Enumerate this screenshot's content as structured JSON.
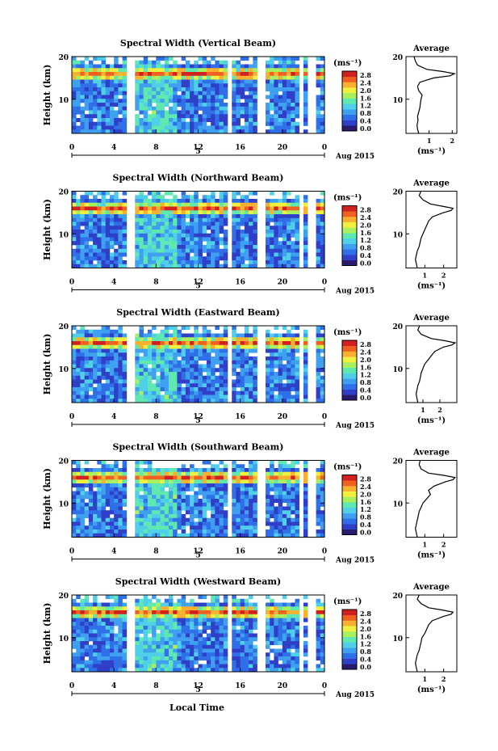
{
  "figure": {
    "ylabel": "Height (km)",
    "xlabel": "Local Time",
    "date_label": "Aug 2015",
    "day_label": "5",
    "unit_label": "(ms⁻¹)",
    "average_title": "Average",
    "average_xlabel": "(ms⁻¹)"
  },
  "chart_data": [
    {
      "type": "heatmap",
      "title": "Spectral Width (Vertical Beam)",
      "x_ticks": [
        "0",
        "4",
        "8",
        "12",
        "16",
        "20",
        "0"
      ],
      "y_ticks": [
        "20",
        "10"
      ],
      "ylim": [
        2,
        20
      ],
      "xlim": [
        0,
        24
      ],
      "colorbar_ticks": [
        "2.8",
        "2.4",
        "2.0",
        "1.6",
        "1.2",
        "0.8",
        "0.4",
        "0.0"
      ],
      "data_gaps_hours": [
        [
          5.4,
          6.0
        ],
        [
          14.8,
          15.2
        ],
        [
          17.8,
          18.4
        ],
        [
          21.6,
          22.0
        ],
        [
          22.6,
          23.0
        ]
      ],
      "tropopause_band_km": 16,
      "average_profile": {
        "xticks": [
          "1",
          "2"
        ],
        "xlim": [
          0,
          2.2
        ],
        "height_km": [
          2,
          3,
          4,
          5,
          6,
          7,
          8,
          9,
          10,
          11,
          12,
          13,
          14,
          15,
          15.5,
          16,
          16.5,
          17,
          18,
          19,
          20
        ],
        "width": [
          0.55,
          0.5,
          0.48,
          0.52,
          0.5,
          0.55,
          0.6,
          0.62,
          0.65,
          0.7,
          0.55,
          0.5,
          0.6,
          1.2,
          1.9,
          2.1,
          1.6,
          0.9,
          0.5,
          0.4,
          0.35
        ]
      }
    },
    {
      "type": "heatmap",
      "title": "Spectral Width (Northward Beam)",
      "x_ticks": [
        "0",
        "4",
        "8",
        "12",
        "16",
        "20",
        "0"
      ],
      "y_ticks": [
        "20",
        "10"
      ],
      "ylim": [
        2,
        20
      ],
      "xlim": [
        0,
        24
      ],
      "colorbar_ticks": [
        "2.8",
        "2.4",
        "2.0",
        "1.6",
        "1.2",
        "0.8",
        "0.4",
        "0.0"
      ],
      "data_gaps_hours": [
        [
          5.4,
          6.0
        ],
        [
          14.8,
          15.2
        ],
        [
          17.8,
          18.4
        ],
        [
          21.6,
          22.0
        ],
        [
          22.6,
          23.0
        ]
      ],
      "tropopause_band_km": 16,
      "average_profile": {
        "xticks": [
          "1",
          "2"
        ],
        "xlim": [
          0,
          2.7
        ],
        "height_km": [
          2,
          3,
          4,
          5,
          6,
          7,
          8,
          9,
          10,
          11,
          12,
          13,
          14,
          15,
          15.5,
          16,
          16.5,
          17,
          18,
          19,
          20
        ],
        "width": [
          0.6,
          0.55,
          0.5,
          0.55,
          0.6,
          0.7,
          0.75,
          0.8,
          0.9,
          1.0,
          1.1,
          1.2,
          1.4,
          2.0,
          2.4,
          2.5,
          1.9,
          1.3,
          0.9,
          0.7,
          0.8
        ]
      }
    },
    {
      "type": "heatmap",
      "title": "Spectral Width (Eastward Beam)",
      "x_ticks": [
        "0",
        "4",
        "8",
        "12",
        "16",
        "20",
        "0"
      ],
      "y_ticks": [
        "20",
        "10"
      ],
      "ylim": [
        2,
        20
      ],
      "xlim": [
        0,
        24
      ],
      "colorbar_ticks": [
        "2.8",
        "2.4",
        "2.0",
        "1.6",
        "1.2",
        "0.8",
        "0.4",
        "0.0"
      ],
      "data_gaps_hours": [
        [
          5.4,
          6.0
        ],
        [
          14.8,
          15.2
        ],
        [
          17.8,
          18.4
        ],
        [
          21.6,
          22.0
        ],
        [
          22.6,
          23.0
        ]
      ],
      "tropopause_band_km": 16,
      "average_profile": {
        "xticks": [
          "1",
          "2"
        ],
        "xlim": [
          0,
          3.0
        ],
        "height_km": [
          2,
          3,
          4,
          5,
          6,
          7,
          8,
          9,
          10,
          11,
          12,
          13,
          14,
          15,
          15.5,
          16,
          16.5,
          17,
          18,
          19,
          20
        ],
        "width": [
          0.7,
          0.65,
          0.6,
          0.65,
          0.7,
          0.8,
          0.85,
          0.9,
          1.0,
          1.1,
          1.3,
          1.5,
          1.7,
          2.2,
          2.7,
          2.9,
          2.3,
          1.5,
          0.9,
          0.7,
          0.8
        ]
      }
    },
    {
      "type": "heatmap",
      "title": "Spectral Width (Southward Beam)",
      "x_ticks": [
        "0",
        "4",
        "8",
        "12",
        "16",
        "20",
        "0"
      ],
      "y_ticks": [
        "20",
        "10"
      ],
      "ylim": [
        2,
        20
      ],
      "xlim": [
        0,
        24
      ],
      "colorbar_ticks": [
        "2.8",
        "2.4",
        "2.0",
        "1.6",
        "1.2",
        "0.8",
        "0.4",
        "0.0"
      ],
      "data_gaps_hours": [
        [
          5.4,
          6.0
        ],
        [
          14.8,
          15.2
        ],
        [
          17.8,
          18.4
        ],
        [
          21.6,
          22.0
        ],
        [
          22.6,
          23.0
        ]
      ],
      "tropopause_band_km": 16,
      "average_profile": {
        "xticks": [
          "1",
          "2"
        ],
        "xlim": [
          0,
          2.7
        ],
        "height_km": [
          2,
          3,
          4,
          5,
          6,
          7,
          8,
          9,
          10,
          11,
          12,
          13,
          14,
          15,
          15.5,
          16,
          16.5,
          17,
          18,
          19,
          20
        ],
        "width": [
          0.6,
          0.55,
          0.5,
          0.55,
          0.6,
          0.65,
          0.7,
          0.8,
          0.9,
          1.1,
          1.3,
          1.2,
          1.5,
          2.1,
          2.5,
          2.6,
          2.0,
          1.2,
          0.8,
          0.7,
          0.75
        ]
      }
    },
    {
      "type": "heatmap",
      "title": "Spectral Width (Westward Beam)",
      "x_ticks": [
        "0",
        "4",
        "8",
        "12",
        "16",
        "20",
        "0"
      ],
      "y_ticks": [
        "20",
        "10"
      ],
      "ylim": [
        2,
        20
      ],
      "xlim": [
        0,
        24
      ],
      "colorbar_ticks": [
        "2.8",
        "2.4",
        "2.0",
        "1.6",
        "1.2",
        "0.8",
        "0.4",
        "0.0"
      ],
      "data_gaps_hours": [
        [
          5.4,
          6.0
        ],
        [
          14.8,
          15.2
        ],
        [
          17.8,
          18.4
        ],
        [
          21.6,
          22.0
        ],
        [
          22.6,
          23.0
        ]
      ],
      "tropopause_band_km": 16,
      "average_profile": {
        "xticks": [
          "1",
          "2"
        ],
        "xlim": [
          0,
          2.7
        ],
        "height_km": [
          2,
          3,
          4,
          5,
          6,
          7,
          8,
          9,
          10,
          11,
          12,
          13,
          14,
          15,
          15.5,
          16,
          16.5,
          17,
          18,
          19,
          20
        ],
        "width": [
          0.6,
          0.55,
          0.5,
          0.55,
          0.6,
          0.7,
          0.75,
          0.8,
          0.85,
          1.0,
          1.1,
          1.2,
          1.4,
          2.0,
          2.4,
          2.5,
          1.9,
          1.2,
          0.8,
          0.6,
          0.7
        ]
      }
    }
  ],
  "colors": {
    "colormap": [
      "#2a1a6e",
      "#2f3fc8",
      "#2f6fe8",
      "#3fa0f0",
      "#4fd0e8",
      "#5fe8b0",
      "#a8f060",
      "#f0f040",
      "#f8b030",
      "#f06020",
      "#d02020"
    ]
  }
}
